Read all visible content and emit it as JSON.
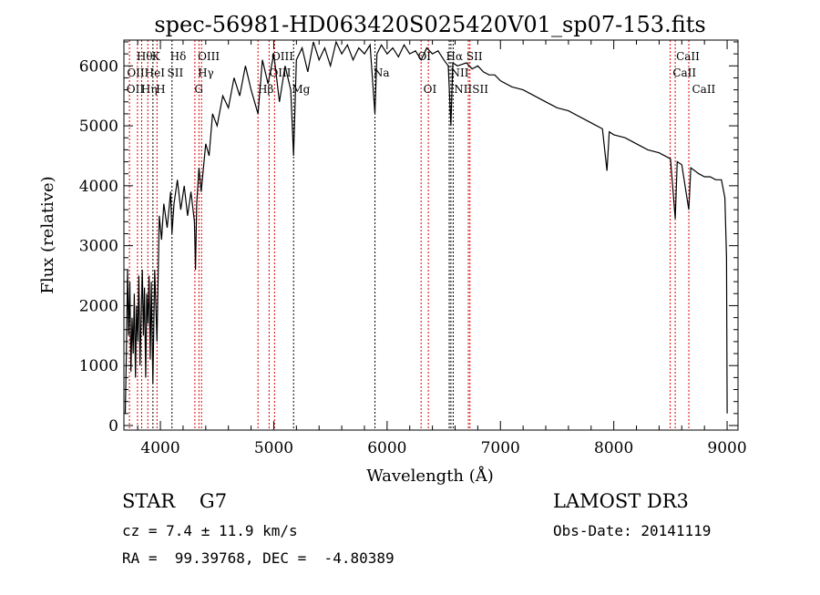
{
  "chart_data": {
    "type": "line",
    "title": "spec-56981-HD063420S025420V01_sp07-153.fits",
    "xlabel": "Wavelength (Å)",
    "ylabel": "Flux (relative)",
    "xlim": [
      3678,
      9096
    ],
    "ylim": [
      -76,
      6430
    ],
    "xticks": [
      4000,
      5000,
      6000,
      7000,
      8000,
      9000
    ],
    "yticks": [
      0,
      1000,
      2000,
      3000,
      4000,
      5000,
      6000
    ],
    "series": [
      {
        "name": "spectrum",
        "x": [
          3690,
          3700,
          3710,
          3720,
          3730,
          3740,
          3750,
          3760,
          3770,
          3780,
          3790,
          3800,
          3810,
          3820,
          3830,
          3840,
          3850,
          3860,
          3870,
          3880,
          3890,
          3900,
          3910,
          3920,
          3934,
          3950,
          3970,
          3990,
          4010,
          4030,
          4060,
          4090,
          4102,
          4120,
          4150,
          4180,
          4210,
          4240,
          4270,
          4300,
          4310,
          4320,
          4340,
          4360,
          4400,
          4430,
          4460,
          4500,
          4550,
          4600,
          4650,
          4700,
          4750,
          4800,
          4861,
          4900,
          4950,
          5000,
          5050,
          5100,
          5150,
          5175,
          5200,
          5250,
          5300,
          5350,
          5400,
          5450,
          5500,
          5550,
          5600,
          5650,
          5700,
          5750,
          5800,
          5850,
          5893,
          5910,
          5950,
          6000,
          6050,
          6100,
          6150,
          6200,
          6250,
          6300,
          6350,
          6400,
          6450,
          6500,
          6540,
          6563,
          6580,
          6620,
          6700,
          6750,
          6800,
          6850,
          6900,
          6950,
          7000,
          7100,
          7200,
          7300,
          7400,
          7500,
          7600,
          7700,
          7800,
          7900,
          7940,
          7960,
          8000,
          8100,
          8200,
          8300,
          8400,
          8500,
          8542,
          8560,
          8600,
          8662,
          8680,
          8750,
          8800,
          8850,
          8900,
          8950,
          8980,
          8995,
          9000
        ],
        "y": [
          200,
          1200,
          2600,
          1500,
          2400,
          900,
          1800,
          1200,
          2200,
          800,
          2000,
          1400,
          2500,
          1000,
          1800,
          2600,
          1500,
          2300,
          800,
          2200,
          1700,
          2500,
          1100,
          2400,
          700,
          2600,
          1400,
          3500,
          3100,
          3700,
          3300,
          3900,
          3200,
          3700,
          4100,
          3600,
          4000,
          3500,
          3900,
          3400,
          2600,
          3700,
          4300,
          3900,
          4700,
          4500,
          5200,
          5000,
          5500,
          5300,
          5800,
          5500,
          6000,
          5600,
          5200,
          6100,
          5700,
          6200,
          5400,
          6000,
          5600,
          4500,
          6100,
          6300,
          5900,
          6400,
          6100,
          6300,
          6000,
          6400,
          6200,
          6350,
          6100,
          6300,
          6200,
          6350,
          5200,
          6200,
          6350,
          6200,
          6300,
          6150,
          6350,
          6200,
          6250,
          6100,
          6300,
          6200,
          6250,
          6100,
          6000,
          5000,
          6050,
          6000,
          6050,
          5950,
          6000,
          5900,
          5850,
          5850,
          5750,
          5650,
          5600,
          5500,
          5400,
          5300,
          5250,
          5150,
          5050,
          4950,
          4250,
          4900,
          4850,
          4800,
          4700,
          4600,
          4550,
          4450,
          3450,
          4400,
          4350,
          3600,
          4300,
          4200,
          4150,
          4150,
          4100,
          4100,
          3800,
          2800,
          200
        ]
      }
    ],
    "lines": [
      {
        "w": 3727,
        "color": "red"
      },
      {
        "w": 3798,
        "color": "red"
      },
      {
        "w": 3835,
        "color": "red"
      },
      {
        "w": 3889,
        "color": "red"
      },
      {
        "w": 3934,
        "color": "black"
      },
      {
        "w": 3970,
        "color": "red"
      },
      {
        "w": 4102,
        "color": "black"
      },
      {
        "w": 4304,
        "color": "red"
      },
      {
        "w": 4340,
        "color": "red"
      },
      {
        "w": 4363,
        "color": "red"
      },
      {
        "w": 4861,
        "color": "red"
      },
      {
        "w": 4959,
        "color": "red"
      },
      {
        "w": 5007,
        "color": "red"
      },
      {
        "w": 5175,
        "color": "black"
      },
      {
        "w": 5893,
        "color": "black"
      },
      {
        "w": 6300,
        "color": "red"
      },
      {
        "w": 6364,
        "color": "red"
      },
      {
        "w": 6548,
        "color": "black"
      },
      {
        "w": 6563,
        "color": "black"
      },
      {
        "w": 6583,
        "color": "black"
      },
      {
        "w": 6717,
        "color": "red"
      },
      {
        "w": 6731,
        "color": "red"
      },
      {
        "w": 8498,
        "color": "red"
      },
      {
        "w": 8542,
        "color": "red"
      },
      {
        "w": 8662,
        "color": "red"
      }
    ],
    "line_labels": [
      {
        "text": "Hθ",
        "w": 3790,
        "row": 0
      },
      {
        "text": "K",
        "w": 3925,
        "row": 0
      },
      {
        "text": "Hδ",
        "w": 4085,
        "row": 0
      },
      {
        "text": "OIII",
        "w": 4330,
        "row": 0
      },
      {
        "text": "OIII",
        "w": 4980,
        "row": 0
      },
      {
        "text": "OI",
        "w": 6270,
        "row": 0
      },
      {
        "text": "Hα",
        "w": 6520,
        "row": 0
      },
      {
        "text": "SII",
        "w": 6700,
        "row": 0
      },
      {
        "text": "CaII",
        "w": 8550,
        "row": 0
      },
      {
        "text": "OII",
        "w": 3705,
        "row": 1
      },
      {
        "text": "HeI",
        "w": 3860,
        "row": 1
      },
      {
        "text": "SII",
        "w": 4060,
        "row": 1
      },
      {
        "text": "Hγ",
        "w": 4330,
        "row": 1
      },
      {
        "text": "OIII",
        "w": 4960,
        "row": 1
      },
      {
        "text": "Na",
        "w": 5880,
        "row": 1
      },
      {
        "text": "NII",
        "w": 6560,
        "row": 1
      },
      {
        "text": "CaII",
        "w": 8520,
        "row": 1
      },
      {
        "text": "OII",
        "w": 3700,
        "row": 2
      },
      {
        "text": "Hη",
        "w": 3830,
        "row": 2
      },
      {
        "text": "H",
        "w": 3960,
        "row": 2
      },
      {
        "text": "G",
        "w": 4300,
        "row": 2
      },
      {
        "text": "Hβ",
        "w": 4860,
        "row": 2
      },
      {
        "text": "Mg",
        "w": 5160,
        "row": 2
      },
      {
        "text": "OI",
        "w": 6320,
        "row": 2
      },
      {
        "text": "NIISII",
        "w": 6590,
        "row": 2
      },
      {
        "text": "CaII",
        "w": 8690,
        "row": 2
      }
    ]
  },
  "info": {
    "class_label": "STAR    G7",
    "cz": "cz = 7.4 ± 11.9 km/s",
    "radec": "RA =  99.39768, DEC =  -4.80389",
    "survey": "LAMOST DR3",
    "obsdate": "Obs-Date: 20141119"
  }
}
